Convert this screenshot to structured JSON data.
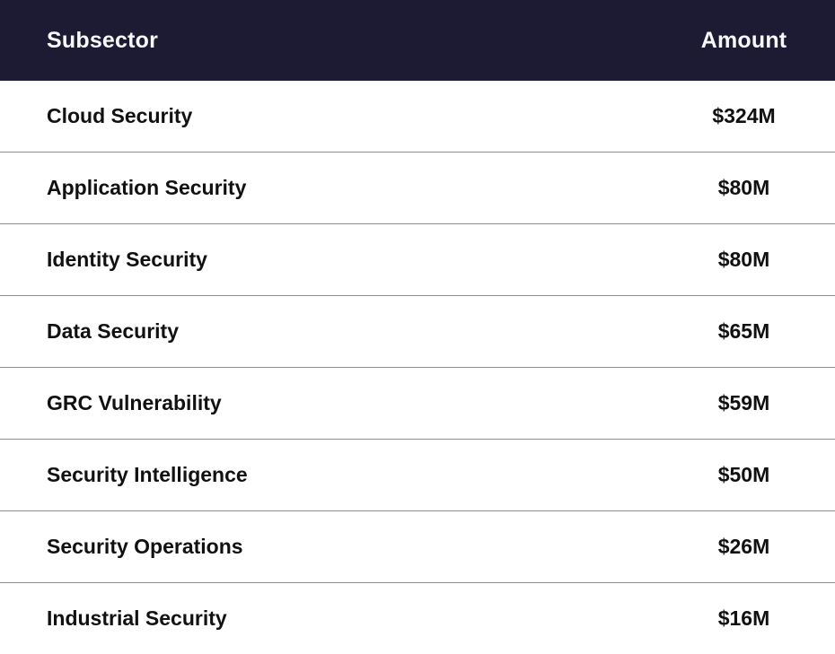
{
  "header": {
    "subsector": "Subsector",
    "amount": "Amount"
  },
  "rows": [
    {
      "subsector": "Cloud Security",
      "amount": "$324M"
    },
    {
      "subsector": "Application Security",
      "amount": "$80M"
    },
    {
      "subsector": "Identity Security",
      "amount": "$80M"
    },
    {
      "subsector": "Data Security",
      "amount": "$65M"
    },
    {
      "subsector": "GRC Vulnerability",
      "amount": "$59M"
    },
    {
      "subsector": "Security Intelligence",
      "amount": "$50M"
    },
    {
      "subsector": "Security Operations",
      "amount": "$26M"
    },
    {
      "subsector": "Industrial Security",
      "amount": "$16M"
    }
  ],
  "colors": {
    "header_bg": "#1d1b33",
    "header_text": "#f7f7f9",
    "body_text": "#111111",
    "divider": "#8b8b93",
    "row_bg": "#ffffff"
  },
  "chart_data": {
    "type": "table",
    "title": "",
    "columns": [
      "Subsector",
      "Amount"
    ],
    "rows": [
      [
        "Cloud Security",
        "$324M"
      ],
      [
        "Application Security",
        "$80M"
      ],
      [
        "Identity Security",
        "$80M"
      ],
      [
        "Data Security",
        "$65M"
      ],
      [
        "GRC Vulnerability",
        "$59M"
      ],
      [
        "Security Intelligence",
        "$50M"
      ],
      [
        "Security Operations",
        "$26M"
      ],
      [
        "Industrial Security",
        "$16M"
      ]
    ],
    "categories": [
      "Cloud Security",
      "Application Security",
      "Identity Security",
      "Data Security",
      "GRC Vulnerability",
      "Security Intelligence",
      "Security Operations",
      "Industrial Security"
    ],
    "values_millions_usd": [
      324,
      80,
      80,
      65,
      59,
      50,
      26,
      16
    ]
  }
}
